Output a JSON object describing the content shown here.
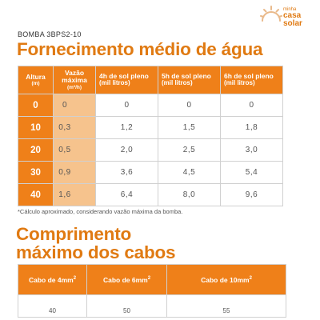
{
  "header": {
    "product": "BOMBA 3BPS2-10",
    "title": "Fornecimento médio de água"
  },
  "logo": {
    "line1": "minha",
    "line2": "casa",
    "line3": "solar",
    "color": "#e07a12"
  },
  "water_table": {
    "headers": {
      "altura": "Altura",
      "altura_unit": "(m)",
      "vazao": "Vazão máxima",
      "vazao_unit": "(m³/h)",
      "h4": "4h de sol pleno",
      "h4_unit": "(mil litros)",
      "h5": "5h de sol pleno",
      "h5_unit": "(mil litros)",
      "h6": "6h de sol pleno",
      "h6_unit": "(mil litros)"
    },
    "rows": [
      {
        "altura": "0",
        "vazao": "0",
        "h4": "0",
        "h5": "0",
        "h6": "0"
      },
      {
        "altura": "10",
        "vazao": "0,3",
        "h4": "1,2",
        "h5": "1,5",
        "h6": "1,8"
      },
      {
        "altura": "20",
        "vazao": "0,5",
        "h4": "2,0",
        "h5": "2,5",
        "h6": "3,0"
      },
      {
        "altura": "30",
        "vazao": "0,9",
        "h4": "3,6",
        "h5": "4,5",
        "h6": "5,4"
      },
      {
        "altura": "40",
        "vazao": "1,6",
        "h4": "6,4",
        "h5": "8,0",
        "h6": "9,6"
      }
    ]
  },
  "note": "*Cálculo aproximado, considerando vazão máxima da bomba.",
  "cables": {
    "title_line1": "Comprimento",
    "title_line2": "máximo dos cabos",
    "headers": [
      "Cabo de 4mm",
      "Cabo de 6mm",
      "Cabo de 10mm"
    ],
    "sup": "2",
    "values": [
      "40",
      "50",
      "55"
    ]
  },
  "colors": {
    "accent": "#ef8019",
    "accent_light": "#f6c38d",
    "title": "#e07a12"
  }
}
